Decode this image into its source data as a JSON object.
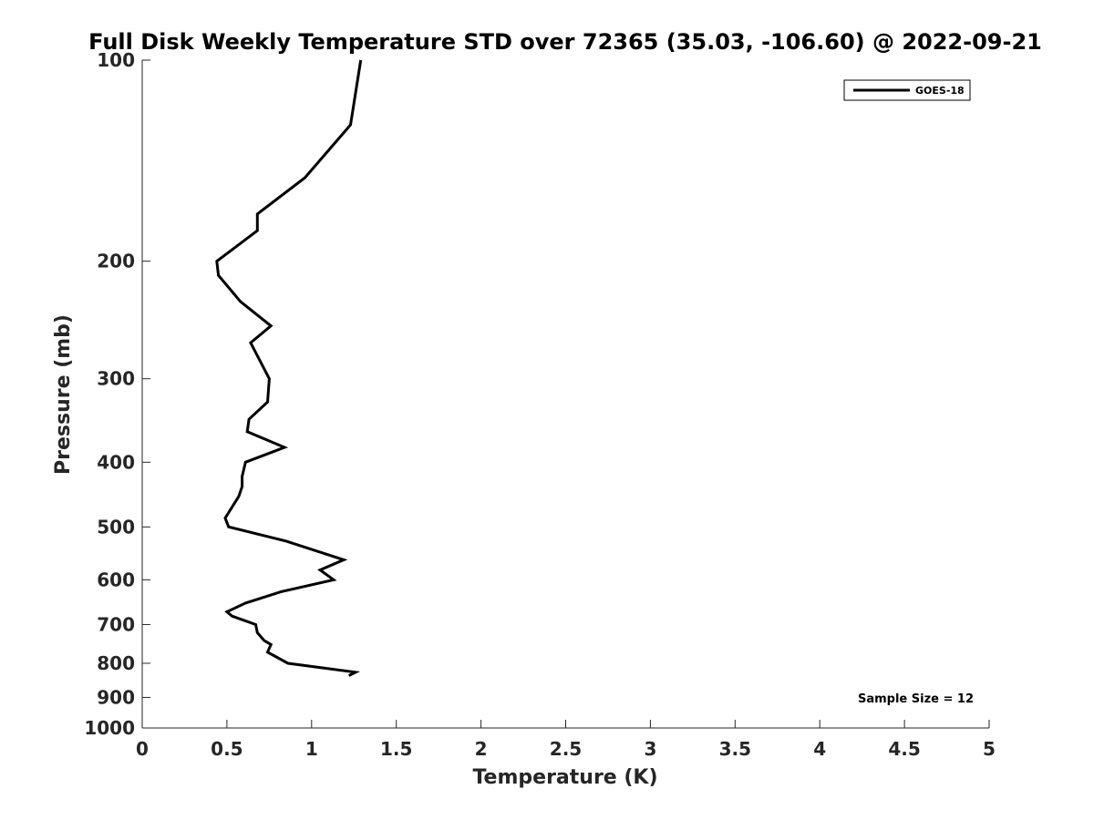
{
  "chart_data": {
    "type": "line",
    "title": "Full Disk Weekly Temperature STD over 72365 (35.03, -106.60) @ 2022-09-21",
    "xlabel": "Temperature (K)",
    "ylabel": "Pressure (mb)",
    "xlim": [
      0,
      5
    ],
    "ylim": [
      100,
      1000
    ],
    "y_scale": "log",
    "y_reversed": true,
    "grid": false,
    "legend_position": "top-right",
    "x_ticks": [
      "0",
      "0.5",
      "1",
      "1.5",
      "2",
      "2.5",
      "3",
      "3.5",
      "4",
      "4.5",
      "5"
    ],
    "y_ticks": [
      "100",
      "200",
      "300",
      "400",
      "500",
      "600",
      "700",
      "800",
      "900",
      "1000"
    ],
    "annotation": "Sample Size = 12",
    "series": [
      {
        "name": "GOES-18",
        "color": "#000000",
        "points": [
          [
            1.29,
            100
          ],
          [
            1.23,
            125
          ],
          [
            0.96,
            150
          ],
          [
            0.68,
            170
          ],
          [
            0.68,
            180
          ],
          [
            0.44,
            200
          ],
          [
            0.45,
            210
          ],
          [
            0.58,
            230
          ],
          [
            0.76,
            250
          ],
          [
            0.64,
            265
          ],
          [
            0.75,
            300
          ],
          [
            0.74,
            325
          ],
          [
            0.63,
            345
          ],
          [
            0.62,
            360
          ],
          [
            0.84,
            380
          ],
          [
            0.61,
            400
          ],
          [
            0.59,
            420
          ],
          [
            0.59,
            435
          ],
          [
            0.57,
            450
          ],
          [
            0.49,
            485
          ],
          [
            0.51,
            500
          ],
          [
            0.85,
            525
          ],
          [
            1.19,
            560
          ],
          [
            1.05,
            580
          ],
          [
            1.13,
            600
          ],
          [
            0.82,
            625
          ],
          [
            0.61,
            650
          ],
          [
            0.5,
            670
          ],
          [
            0.53,
            680
          ],
          [
            0.67,
            700
          ],
          [
            0.68,
            720
          ],
          [
            0.72,
            740
          ],
          [
            0.76,
            750
          ],
          [
            0.74,
            770
          ],
          [
            0.86,
            800
          ],
          [
            1.26,
            825
          ],
          [
            1.22,
            835
          ]
        ]
      }
    ]
  }
}
